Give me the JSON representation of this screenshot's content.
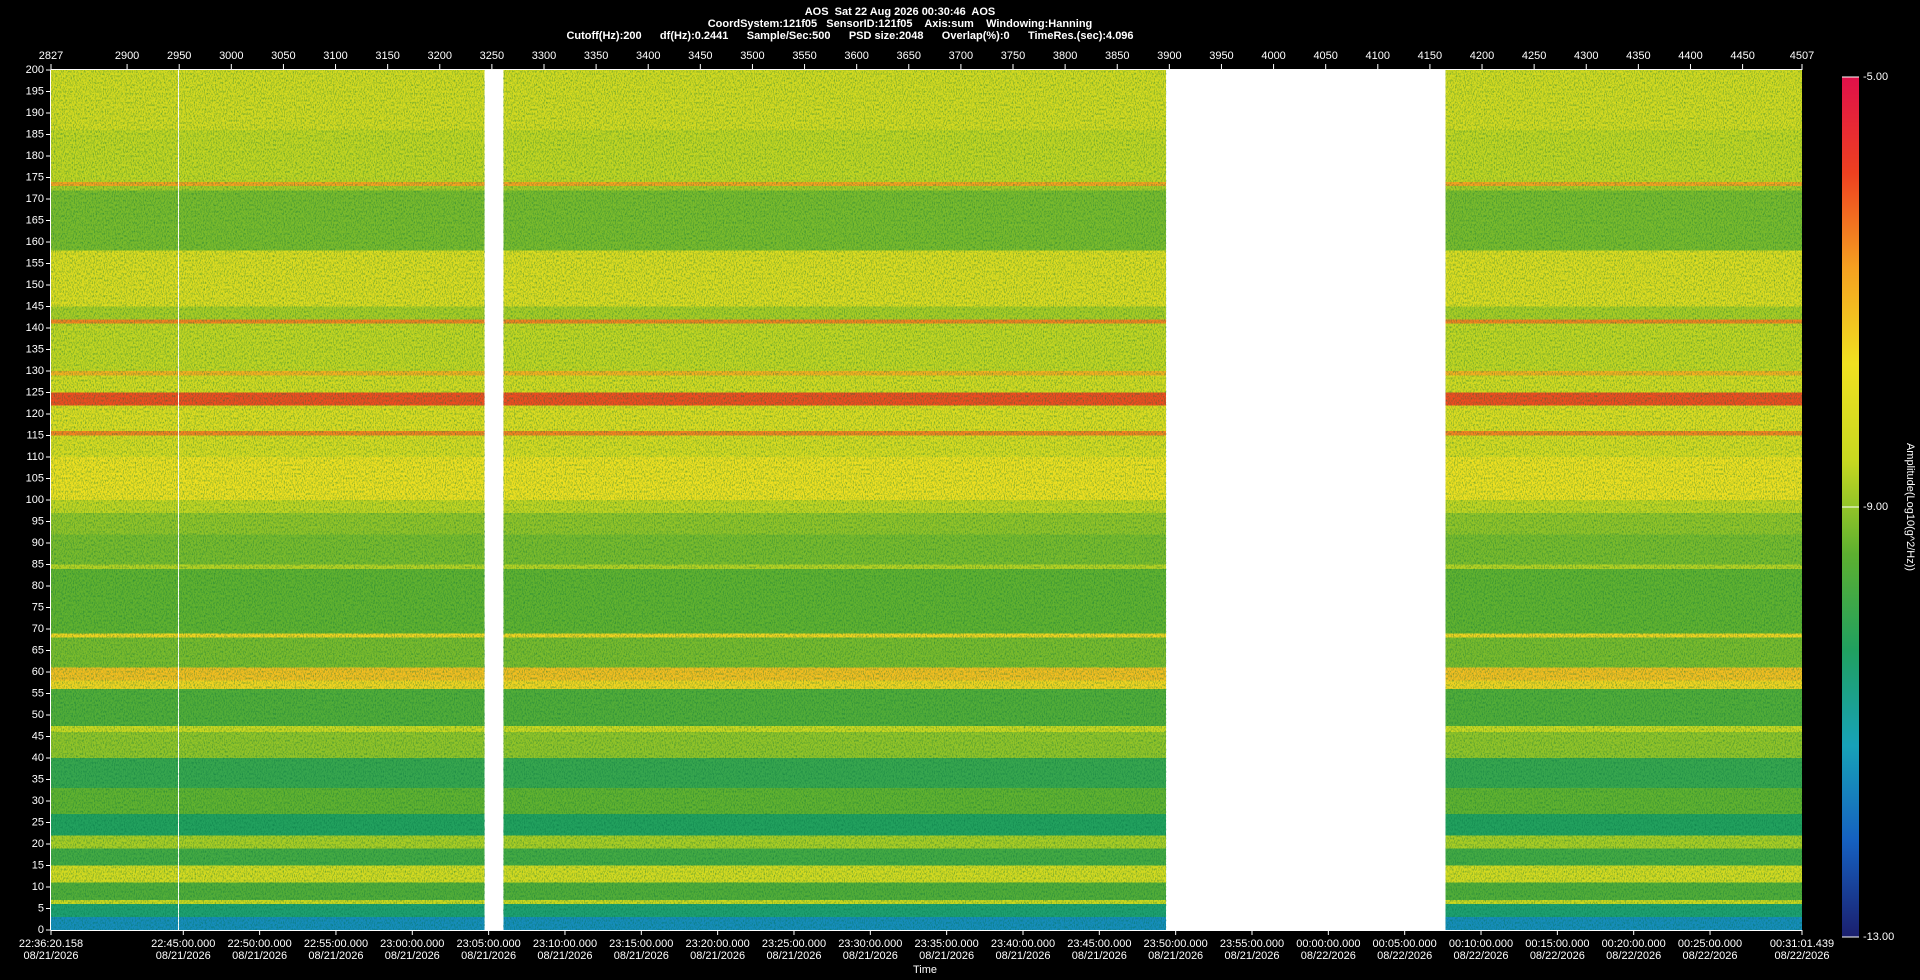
{
  "chart_data": {
    "type": "spectrogram",
    "title": "AOS  Sat 22 Aug 2026 00:30:46  AOS",
    "subtitle": [
      "CoordSystem:121f05   SensorID:121f05    Axis:sum    Windowing:Hanning",
      "Cutoff(Hz):200      df(Hz):0.2441      Sample/Sec:500      PSD size:2048      Overlap(%):0      TimeRes.(sec):4.096"
    ],
    "x_label": "Time",
    "colorbar_label": "Amplitude(Log10(g^2/Hz))",
    "xlim": [
      2827,
      4507
    ],
    "xticks": [
      2827,
      2900,
      2950,
      3000,
      3050,
      3100,
      3150,
      3200,
      3250,
      3300,
      3350,
      3400,
      3450,
      3500,
      3550,
      3600,
      3650,
      3700,
      3750,
      3800,
      3850,
      3900,
      3950,
      4000,
      4050,
      4100,
      4150,
      4200,
      4250,
      4300,
      4350,
      4400,
      4450,
      4507
    ],
    "time_lim": [
      {
        "time": "22:36:20.158",
        "date": "08/21/2026"
      },
      {
        "time": "00:31:01.439",
        "date": "08/22/2026"
      }
    ],
    "time_ticks": [
      {
        "time": "22:36:20.158",
        "date": "08/21/2026"
      },
      {
        "time": "22:45:00.000",
        "date": "08/21/2026"
      },
      {
        "time": "22:50:00.000",
        "date": "08/21/2026"
      },
      {
        "time": "22:55:00.000",
        "date": "08/21/2026"
      },
      {
        "time": "23:00:00.000",
        "date": "08/21/2026"
      },
      {
        "time": "23:05:00.000",
        "date": "08/21/2026"
      },
      {
        "time": "23:10:00.000",
        "date": "08/21/2026"
      },
      {
        "time": "23:15:00.000",
        "date": "08/21/2026"
      },
      {
        "time": "23:20:00.000",
        "date": "08/21/2026"
      },
      {
        "time": "23:25:00.000",
        "date": "08/21/2026"
      },
      {
        "time": "23:30:00.000",
        "date": "08/21/2026"
      },
      {
        "time": "23:35:00.000",
        "date": "08/21/2026"
      },
      {
        "time": "23:40:00.000",
        "date": "08/21/2026"
      },
      {
        "time": "23:45:00.000",
        "date": "08/21/2026"
      },
      {
        "time": "23:50:00.000",
        "date": "08/21/2026"
      },
      {
        "time": "23:55:00.000",
        "date": "08/21/2026"
      },
      {
        "time": "00:00:00.000",
        "date": "08/22/2026"
      },
      {
        "time": "00:05:00.000",
        "date": "08/22/2026"
      },
      {
        "time": "00:10:00.000",
        "date": "08/22/2026"
      },
      {
        "time": "00:15:00.000",
        "date": "08/22/2026"
      },
      {
        "time": "00:20:00.000",
        "date": "08/22/2026"
      },
      {
        "time": "00:25:00.000",
        "date": "08/22/2026"
      },
      {
        "time": "00:31:01.439",
        "date": "08/22/2026"
      }
    ],
    "ylim": [
      0,
      200
    ],
    "yticks": [
      0,
      5,
      10,
      15,
      20,
      25,
      30,
      35,
      40,
      45,
      50,
      55,
      60,
      65,
      70,
      75,
      80,
      85,
      90,
      95,
      100,
      105,
      110,
      115,
      120,
      125,
      130,
      135,
      140,
      145,
      150,
      155,
      160,
      165,
      170,
      175,
      180,
      185,
      190,
      195,
      200
    ],
    "record_spans": [
      [
        2827,
        2949
      ],
      [
        2950,
        3243
      ],
      [
        3261,
        3897
      ],
      [
        4165,
        4507
      ]
    ],
    "freq_edges": [
      0,
      3,
      6,
      7,
      11,
      15,
      19,
      22,
      27,
      33,
      40,
      46,
      47.5,
      56,
      58,
      61,
      68,
      69,
      84,
      85,
      92,
      97,
      100,
      110,
      115,
      116,
      122,
      125,
      129,
      130,
      141,
      142,
      145,
      158,
      172,
      173,
      174,
      186,
      200
    ],
    "amplitude": [
      -11.5,
      -10.5,
      -8.5,
      -9.6,
      -8.3,
      -9.8,
      -8.8,
      -10.3,
      -9.4,
      -10.0,
      -9.0,
      -8.5,
      -9.6,
      -7.5,
      -7.2,
      -9.2,
      -7.5,
      -9.4,
      -8.7,
      -9.2,
      -9.0,
      -8.6,
      -7.7,
      -8.2,
      -6.5,
      -8.1,
      -6.0,
      -8.3,
      -7.0,
      -8.6,
      -6.5,
      -8.8,
      -8.1,
      -9.2,
      -8.8,
      -6.8,
      -8.6,
      -8.3
    ],
    "clim": [
      -13,
      -5
    ],
    "cticks": [
      {
        "value": -13,
        "label": "-13.00"
      },
      {
        "value": -9,
        "label": "-9.00"
      },
      {
        "value": -5,
        "label": "-5.00"
      }
    ],
    "colormap": [
      "#1b1f6e",
      "#1560c0",
      "#17a2b8",
      "#20a060",
      "#5cb030",
      "#c8d820",
      "#f0e020",
      "#f5a020",
      "#ee4020",
      "#e0104a"
    ]
  }
}
